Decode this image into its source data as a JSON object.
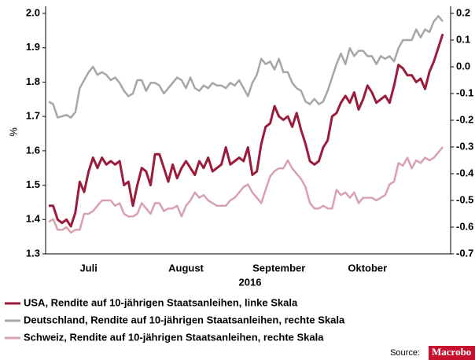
{
  "chart_data": {
    "type": "line",
    "x_label": "2016",
    "y_label": "%",
    "categories": [
      null,
      null,
      null,
      null,
      null,
      null,
      null,
      null,
      null,
      "Juli",
      null,
      null,
      null,
      null,
      null,
      null,
      null,
      null,
      null,
      null,
      null,
      null,
      null,
      null,
      null,
      null,
      null,
      null,
      null,
      null,
      null,
      "August",
      null,
      null,
      null,
      null,
      null,
      null,
      null,
      null,
      null,
      null,
      null,
      null,
      null,
      null,
      null,
      null,
      null,
      null,
      null,
      null,
      "September",
      null,
      null,
      null,
      null,
      null,
      null,
      null,
      null,
      null,
      null,
      null,
      null,
      null,
      null,
      null,
      null,
      null,
      null,
      null,
      "Oktober",
      null,
      null,
      null,
      null,
      null,
      null,
      null,
      null,
      null,
      null,
      null,
      null,
      null,
      null,
      null,
      null,
      null
    ],
    "ylim": [
      1.3,
      2.0
    ],
    "yticks": [
      1.3,
      1.4,
      1.5,
      1.6,
      1.7,
      1.8,
      1.9,
      {
        "value": 2,
        "label": "2.0"
      }
    ],
    "y2lim": [
      -0.7,
      0.2
    ],
    "y2ticks": [
      -0.7,
      -0.6,
      -0.5,
      -0.4,
      -0.3,
      -0.2,
      -0.1,
      {
        "value": 0,
        "label": "0.0"
      },
      0.1,
      0.2
    ],
    "series": [
      {
        "name": "USA, Rendite auf 10-jährigen Staatsanleihen, linke Skala",
        "color": "#9b1b3a",
        "axis": "y",
        "values": [
          1.44,
          1.44,
          1.4,
          1.39,
          1.4,
          1.38,
          1.42,
          1.51,
          1.48,
          1.54,
          1.58,
          1.55,
          1.58,
          1.56,
          1.57,
          1.56,
          1.57,
          1.5,
          1.51,
          1.44,
          1.5,
          1.55,
          1.54,
          1.5,
          1.59,
          1.59,
          1.55,
          1.51,
          1.56,
          1.52,
          1.55,
          1.57,
          1.55,
          1.53,
          1.57,
          1.55,
          1.58,
          1.54,
          1.55,
          1.56,
          1.61,
          1.56,
          1.57,
          1.58,
          1.57,
          1.61,
          1.53,
          1.54,
          1.62,
          1.67,
          1.68,
          1.73,
          1.7,
          1.69,
          1.7,
          1.67,
          1.71,
          1.66,
          1.62,
          1.57,
          1.56,
          1.57,
          1.61,
          1.63,
          1.7,
          1.71,
          1.74,
          1.76,
          1.74,
          1.77,
          1.72,
          1.75,
          1.79,
          1.77,
          1.74,
          1.75,
          1.76,
          1.74,
          1.79,
          1.85,
          1.84,
          1.82,
          1.82,
          1.8,
          1.81,
          1.78,
          1.83,
          1.86,
          1.9,
          1.94
        ]
      },
      {
        "name": "Deutschland, Rendite auf 10-jährigen Staatsanleihen, rechte Skala",
        "color": "#a6a6a6",
        "axis": "y2",
        "values": [
          -0.13,
          -0.14,
          -0.19,
          -0.185,
          -0.18,
          -0.19,
          -0.17,
          -0.08,
          -0.05,
          -0.02,
          0.0,
          -0.03,
          -0.02,
          -0.03,
          -0.05,
          -0.04,
          -0.06,
          -0.09,
          -0.11,
          -0.1,
          -0.05,
          -0.05,
          -0.09,
          -0.06,
          -0.06,
          -0.07,
          -0.1,
          -0.08,
          -0.06,
          -0.04,
          -0.05,
          -0.08,
          -0.04,
          -0.08,
          -0.09,
          -0.07,
          -0.08,
          -0.06,
          -0.07,
          -0.07,
          -0.08,
          -0.06,
          -0.07,
          -0.05,
          -0.08,
          -0.11,
          -0.06,
          -0.03,
          0.03,
          0.01,
          0.02,
          -0.01,
          0.03,
          -0.02,
          -0.02,
          -0.06,
          -0.08,
          -0.09,
          -0.13,
          -0.14,
          -0.12,
          -0.14,
          -0.13,
          -0.09,
          -0.04,
          0.01,
          0.05,
          0.01,
          0.07,
          0.04,
          0.06,
          0.06,
          0.04,
          0.04,
          0.01,
          0.04,
          0.03,
          0.04,
          0.02,
          0.07,
          0.1,
          0.1,
          0.1,
          0.14,
          0.11,
          0.14,
          0.13,
          0.17,
          0.19,
          0.17
        ]
      },
      {
        "name": "Schweiz, Rendite auf 10-jährigen Staatsanleihen, rechte Skala",
        "color": "#d9a0ad",
        "axis": "y2",
        "values": [
          -0.58,
          -0.57,
          -0.61,
          -0.61,
          -0.6,
          -0.62,
          -0.61,
          -0.61,
          -0.55,
          -0.55,
          -0.54,
          -0.52,
          -0.5,
          -0.5,
          -0.5,
          -0.52,
          -0.51,
          -0.55,
          -0.56,
          -0.56,
          -0.55,
          -0.51,
          -0.53,
          -0.55,
          -0.51,
          -0.51,
          -0.54,
          -0.53,
          -0.53,
          -0.52,
          -0.56,
          -0.52,
          -0.5,
          -0.47,
          -0.49,
          -0.48,
          -0.5,
          -0.51,
          -0.52,
          -0.52,
          -0.52,
          -0.5,
          -0.49,
          -0.47,
          -0.45,
          -0.44,
          -0.47,
          -0.49,
          -0.51,
          -0.46,
          -0.41,
          -0.39,
          -0.38,
          -0.38,
          -0.35,
          -0.38,
          -0.4,
          -0.42,
          -0.45,
          -0.51,
          -0.53,
          -0.53,
          -0.52,
          -0.53,
          -0.53,
          -0.46,
          -0.48,
          -0.47,
          -0.49,
          -0.47,
          -0.51,
          -0.49,
          -0.49,
          -0.49,
          -0.5,
          -0.49,
          -0.48,
          -0.44,
          -0.43,
          -0.36,
          -0.37,
          -0.34,
          -0.38,
          -0.35,
          -0.36,
          -0.34,
          -0.35,
          -0.34,
          -0.32,
          -0.3
        ]
      }
    ],
    "source": "Source:",
    "logo": "Macrobo"
  }
}
